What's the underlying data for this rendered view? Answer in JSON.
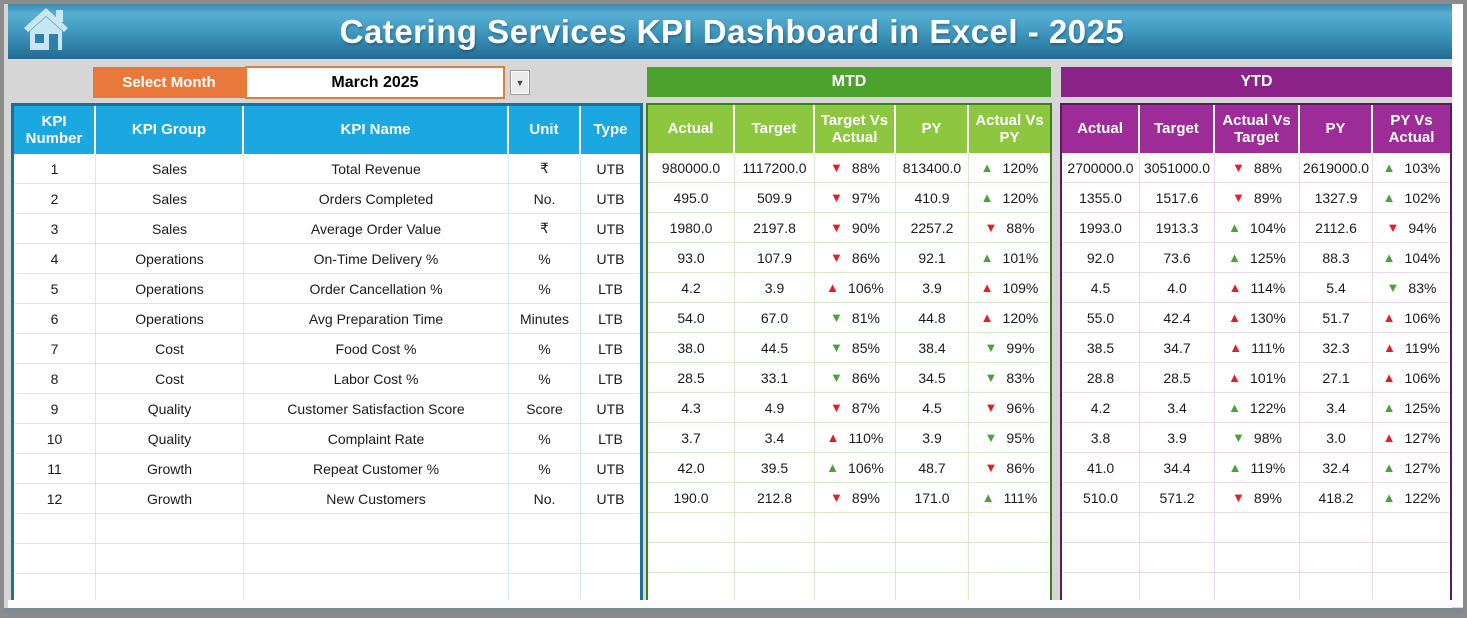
{
  "window": {
    "title": "Catering Services KPI Dashboard in Excel - 2025"
  },
  "month_selector": {
    "label": "Select Month",
    "value": "March 2025"
  },
  "sections": {
    "mtd": "MTD",
    "ytd": "YTD"
  },
  "kpi_table_headers": [
    "KPI Number",
    "KPI Group",
    "KPI Name",
    "Unit",
    "Type"
  ],
  "mtd_table_headers": [
    "Actual",
    "Target",
    "Target Vs Actual",
    "PY",
    "Actual Vs PY"
  ],
  "ytd_table_headers": [
    "Actual",
    "Target",
    "Actual Vs Target",
    "PY",
    "PY Vs Actual"
  ],
  "colors": {
    "banner_blue_top": "#57afd3",
    "banner_blue_bottom": "#226a92",
    "header_blue": "#1ba7e0",
    "mtd_green": "#4da22e",
    "mtd_header_green": "#8dc63f",
    "ytd_purple": "#8b2287",
    "ytd_header_purple": "#9e2c98",
    "select_orange": "#e8793a",
    "arrow_red": "#e41e26",
    "arrow_green": "#4ba338"
  },
  "empty_row_count": 3,
  "rows": [
    {
      "kpi_number": "1",
      "kpi_group": "Sales",
      "kpi_name": "Total Revenue",
      "unit": "₹",
      "type": "UTB",
      "mtd": {
        "actual": "980000.0",
        "target": "1117200.0",
        "target_vs_actual": {
          "arrow": "down",
          "color": "red",
          "value": "88%"
        },
        "py": "813400.0",
        "actual_vs_py": {
          "arrow": "up",
          "color": "green",
          "value": "120%"
        }
      },
      "ytd": {
        "actual": "2700000.0",
        "target": "3051000.0",
        "actual_vs_target": {
          "arrow": "down",
          "color": "red",
          "value": "88%"
        },
        "py": "2619000.0",
        "py_vs_actual": {
          "arrow": "up",
          "color": "green",
          "value": "103%"
        }
      }
    },
    {
      "kpi_number": "2",
      "kpi_group": "Sales",
      "kpi_name": "Orders Completed",
      "unit": "No.",
      "type": "UTB",
      "mtd": {
        "actual": "495.0",
        "target": "509.9",
        "target_vs_actual": {
          "arrow": "down",
          "color": "red",
          "value": "97%"
        },
        "py": "410.9",
        "actual_vs_py": {
          "arrow": "up",
          "color": "green",
          "value": "120%"
        }
      },
      "ytd": {
        "actual": "1355.0",
        "target": "1517.6",
        "actual_vs_target": {
          "arrow": "down",
          "color": "red",
          "value": "89%"
        },
        "py": "1327.9",
        "py_vs_actual": {
          "arrow": "up",
          "color": "green",
          "value": "102%"
        }
      }
    },
    {
      "kpi_number": "3",
      "kpi_group": "Sales",
      "kpi_name": "Average Order Value",
      "unit": "₹",
      "type": "UTB",
      "mtd": {
        "actual": "1980.0",
        "target": "2197.8",
        "target_vs_actual": {
          "arrow": "down",
          "color": "red",
          "value": "90%"
        },
        "py": "2257.2",
        "actual_vs_py": {
          "arrow": "down",
          "color": "red",
          "value": "88%"
        }
      },
      "ytd": {
        "actual": "1993.0",
        "target": "1913.3",
        "actual_vs_target": {
          "arrow": "up",
          "color": "green",
          "value": "104%"
        },
        "py": "2112.6",
        "py_vs_actual": {
          "arrow": "down",
          "color": "red",
          "value": "94%"
        }
      }
    },
    {
      "kpi_number": "4",
      "kpi_group": "Operations",
      "kpi_name": "On-Time Delivery %",
      "unit": "%",
      "type": "UTB",
      "mtd": {
        "actual": "93.0",
        "target": "107.9",
        "target_vs_actual": {
          "arrow": "down",
          "color": "red",
          "value": "86%"
        },
        "py": "92.1",
        "actual_vs_py": {
          "arrow": "up",
          "color": "green",
          "value": "101%"
        }
      },
      "ytd": {
        "actual": "92.0",
        "target": "73.6",
        "actual_vs_target": {
          "arrow": "up",
          "color": "green",
          "value": "125%"
        },
        "py": "88.3",
        "py_vs_actual": {
          "arrow": "up",
          "color": "green",
          "value": "104%"
        }
      }
    },
    {
      "kpi_number": "5",
      "kpi_group": "Operations",
      "kpi_name": "Order Cancellation %",
      "unit": "%",
      "type": "LTB",
      "mtd": {
        "actual": "4.2",
        "target": "3.9",
        "target_vs_actual": {
          "arrow": "up",
          "color": "red",
          "value": "106%"
        },
        "py": "3.9",
        "actual_vs_py": {
          "arrow": "up",
          "color": "red",
          "value": "109%"
        }
      },
      "ytd": {
        "actual": "4.5",
        "target": "4.0",
        "actual_vs_target": {
          "arrow": "up",
          "color": "red",
          "value": "114%"
        },
        "py": "5.4",
        "py_vs_actual": {
          "arrow": "down",
          "color": "green",
          "value": "83%"
        }
      }
    },
    {
      "kpi_number": "6",
      "kpi_group": "Operations",
      "kpi_name": "Avg Preparation Time",
      "unit": "Minutes",
      "type": "LTB",
      "mtd": {
        "actual": "54.0",
        "target": "67.0",
        "target_vs_actual": {
          "arrow": "down",
          "color": "green",
          "value": "81%"
        },
        "py": "44.8",
        "actual_vs_py": {
          "arrow": "up",
          "color": "red",
          "value": "120%"
        }
      },
      "ytd": {
        "actual": "55.0",
        "target": "42.4",
        "actual_vs_target": {
          "arrow": "up",
          "color": "red",
          "value": "130%"
        },
        "py": "51.7",
        "py_vs_actual": {
          "arrow": "up",
          "color": "red",
          "value": "106%"
        }
      }
    },
    {
      "kpi_number": "7",
      "kpi_group": "Cost",
      "kpi_name": "Food Cost %",
      "unit": "%",
      "type": "LTB",
      "mtd": {
        "actual": "38.0",
        "target": "44.5",
        "target_vs_actual": {
          "arrow": "down",
          "color": "green",
          "value": "85%"
        },
        "py": "38.4",
        "actual_vs_py": {
          "arrow": "down",
          "color": "green",
          "value": "99%"
        }
      },
      "ytd": {
        "actual": "38.5",
        "target": "34.7",
        "actual_vs_target": {
          "arrow": "up",
          "color": "red",
          "value": "111%"
        },
        "py": "32.3",
        "py_vs_actual": {
          "arrow": "up",
          "color": "red",
          "value": "119%"
        }
      }
    },
    {
      "kpi_number": "8",
      "kpi_group": "Cost",
      "kpi_name": "Labor Cost %",
      "unit": "%",
      "type": "LTB",
      "mtd": {
        "actual": "28.5",
        "target": "33.1",
        "target_vs_actual": {
          "arrow": "down",
          "color": "green",
          "value": "86%"
        },
        "py": "34.5",
        "actual_vs_py": {
          "arrow": "down",
          "color": "green",
          "value": "83%"
        }
      },
      "ytd": {
        "actual": "28.8",
        "target": "28.5",
        "actual_vs_target": {
          "arrow": "up",
          "color": "red",
          "value": "101%"
        },
        "py": "27.1",
        "py_vs_actual": {
          "arrow": "up",
          "color": "red",
          "value": "106%"
        }
      }
    },
    {
      "kpi_number": "9",
      "kpi_group": "Quality",
      "kpi_name": "Customer Satisfaction Score",
      "unit": "Score",
      "type": "UTB",
      "mtd": {
        "actual": "4.3",
        "target": "4.9",
        "target_vs_actual": {
          "arrow": "down",
          "color": "red",
          "value": "87%"
        },
        "py": "4.5",
        "actual_vs_py": {
          "arrow": "down",
          "color": "red",
          "value": "96%"
        }
      },
      "ytd": {
        "actual": "4.2",
        "target": "3.4",
        "actual_vs_target": {
          "arrow": "up",
          "color": "green",
          "value": "122%"
        },
        "py": "3.4",
        "py_vs_actual": {
          "arrow": "up",
          "color": "green",
          "value": "125%"
        }
      }
    },
    {
      "kpi_number": "10",
      "kpi_group": "Quality",
      "kpi_name": "Complaint Rate",
      "unit": "%",
      "type": "LTB",
      "mtd": {
        "actual": "3.7",
        "target": "3.4",
        "target_vs_actual": {
          "arrow": "up",
          "color": "red",
          "value": "110%"
        },
        "py": "3.9",
        "actual_vs_py": {
          "arrow": "down",
          "color": "green",
          "value": "95%"
        }
      },
      "ytd": {
        "actual": "3.8",
        "target": "3.9",
        "actual_vs_target": {
          "arrow": "down",
          "color": "green",
          "value": "98%"
        },
        "py": "3.0",
        "py_vs_actual": {
          "arrow": "up",
          "color": "red",
          "value": "127%"
        }
      }
    },
    {
      "kpi_number": "11",
      "kpi_group": "Growth",
      "kpi_name": "Repeat Customer %",
      "unit": "%",
      "type": "UTB",
      "mtd": {
        "actual": "42.0",
        "target": "39.5",
        "target_vs_actual": {
          "arrow": "up",
          "color": "green",
          "value": "106%"
        },
        "py": "48.7",
        "actual_vs_py": {
          "arrow": "down",
          "color": "red",
          "value": "86%"
        }
      },
      "ytd": {
        "actual": "41.0",
        "target": "34.4",
        "actual_vs_target": {
          "arrow": "up",
          "color": "green",
          "value": "119%"
        },
        "py": "32.4",
        "py_vs_actual": {
          "arrow": "up",
          "color": "green",
          "value": "127%"
        }
      }
    },
    {
      "kpi_number": "12",
      "kpi_group": "Growth",
      "kpi_name": "New Customers",
      "unit": "No.",
      "type": "UTB",
      "mtd": {
        "actual": "190.0",
        "target": "212.8",
        "target_vs_actual": {
          "arrow": "down",
          "color": "red",
          "value": "89%"
        },
        "py": "171.0",
        "actual_vs_py": {
          "arrow": "up",
          "color": "green",
          "value": "111%"
        }
      },
      "ytd": {
        "actual": "510.0",
        "target": "571.2",
        "actual_vs_target": {
          "arrow": "down",
          "color": "red",
          "value": "89%"
        },
        "py": "418.2",
        "py_vs_actual": {
          "arrow": "up",
          "color": "green",
          "value": "122%"
        }
      }
    }
  ]
}
